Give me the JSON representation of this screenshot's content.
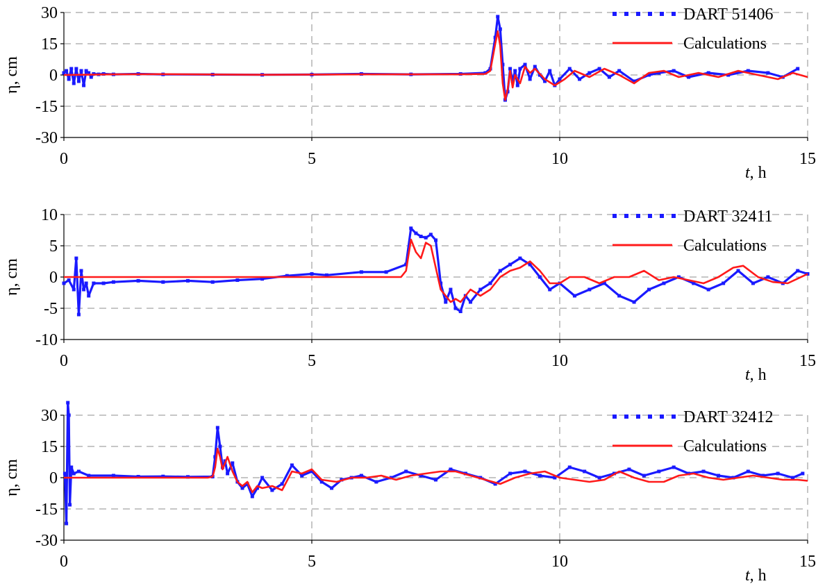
{
  "colors": {
    "observed": "#1a1aff",
    "calculated": "#ff1a1a",
    "grid": "#8c8c8c",
    "axis": "#000000"
  },
  "chart_data": [
    {
      "type": "line",
      "title": "",
      "xlabel_var": "t",
      "xlabel_unit": ", h",
      "ylabel": "η, cm",
      "xlim": [
        0,
        15
      ],
      "ylim": [
        -30,
        30
      ],
      "xticks": [
        0,
        5,
        10,
        15
      ],
      "yticks": [
        30,
        15,
        0,
        -15,
        -30
      ],
      "grid": "dashed",
      "legend_position": "top-right",
      "series": [
        {
          "name": "DART 51406",
          "style": "dots",
          "x": [
            0.0,
            0.05,
            0.1,
            0.15,
            0.2,
            0.25,
            0.3,
            0.35,
            0.4,
            0.45,
            0.5,
            0.55,
            0.6,
            0.7,
            0.8,
            1.0,
            1.5,
            2.0,
            3.0,
            4.0,
            5.0,
            6.0,
            7.0,
            8.0,
            8.5,
            8.6,
            8.7,
            8.75,
            8.8,
            8.85,
            8.9,
            8.95,
            9.0,
            9.05,
            9.1,
            9.15,
            9.2,
            9.3,
            9.4,
            9.5,
            9.6,
            9.7,
            9.8,
            9.9,
            10.0,
            10.2,
            10.4,
            10.6,
            10.8,
            11.0,
            11.2,
            11.5,
            11.8,
            12.0,
            12.3,
            12.6,
            13.0,
            13.4,
            13.8,
            14.2,
            14.5,
            14.8
          ],
          "y": [
            1,
            2,
            -2,
            3,
            -4,
            3,
            -3,
            2,
            -5,
            2,
            1,
            -1,
            0.5,
            0.3,
            0.5,
            0.3,
            0.5,
            0.3,
            0.2,
            0.1,
            0.2,
            0.5,
            0.3,
            0.5,
            1,
            3,
            18,
            28,
            22,
            5,
            -12,
            -8,
            3,
            -3,
            2,
            -5,
            3,
            5,
            -2,
            4,
            0,
            -3,
            2,
            -5,
            -2,
            3,
            -2,
            1,
            3,
            -1,
            2,
            -3,
            0,
            1,
            2,
            -1,
            1,
            0,
            2,
            1,
            -1,
            3
          ]
        },
        {
          "name": "Calculations",
          "style": "line",
          "x": [
            0.0,
            1.0,
            2.0,
            4.0,
            6.0,
            8.0,
            8.5,
            8.6,
            8.7,
            8.75,
            8.8,
            8.85,
            8.9,
            8.95,
            9.0,
            9.05,
            9.1,
            9.2,
            9.3,
            9.4,
            9.5,
            9.7,
            9.9,
            10.1,
            10.3,
            10.6,
            10.9,
            11.2,
            11.5,
            11.8,
            12.1,
            12.4,
            12.8,
            13.2,
            13.6,
            14.0,
            14.4,
            14.7,
            15.0
          ],
          "y": [
            0,
            0.3,
            0.4,
            0.1,
            0.3,
            0.3,
            0.5,
            2,
            15,
            21,
            14,
            -4,
            -12,
            -7,
            2,
            -6,
            0,
            -4,
            4,
            1,
            3,
            -2,
            -5,
            -2,
            2,
            -1,
            3,
            0,
            -4,
            1,
            2,
            -1,
            1,
            -1,
            2,
            0,
            -2,
            1,
            -1
          ]
        }
      ]
    },
    {
      "type": "line",
      "title": "",
      "xlabel_var": "t",
      "xlabel_unit": ", h",
      "ylabel": "η, cm",
      "xlim": [
        0,
        15
      ],
      "ylim": [
        -10,
        10
      ],
      "xticks": [
        0,
        5,
        10,
        15
      ],
      "yticks": [
        10,
        5,
        0,
        -5,
        -10
      ],
      "grid": "dashed",
      "legend_position": "top-right",
      "series": [
        {
          "name": "DART 32411",
          "style": "dots",
          "x": [
            0.0,
            0.1,
            0.2,
            0.25,
            0.3,
            0.35,
            0.4,
            0.45,
            0.5,
            0.6,
            0.8,
            1.0,
            1.5,
            2.0,
            2.5,
            3.0,
            3.5,
            4.0,
            4.5,
            5.0,
            5.3,
            6.0,
            6.5,
            6.9,
            7.0,
            7.1,
            7.2,
            7.3,
            7.4,
            7.5,
            7.6,
            7.7,
            7.8,
            7.9,
            8.0,
            8.1,
            8.2,
            8.4,
            8.6,
            8.8,
            9.0,
            9.2,
            9.4,
            9.6,
            9.8,
            10.0,
            10.3,
            10.6,
            10.9,
            11.2,
            11.5,
            11.8,
            12.1,
            12.4,
            12.7,
            13.0,
            13.3,
            13.6,
            13.9,
            14.2,
            14.5,
            14.8,
            15.0
          ],
          "y": [
            -1,
            -0.5,
            -2,
            3,
            -6,
            1,
            -2,
            -1,
            -3,
            -1,
            -1,
            -0.8,
            -0.6,
            -0.8,
            -0.6,
            -0.8,
            -0.5,
            -0.3,
            0.2,
            0.5,
            0.3,
            0.8,
            0.8,
            2,
            7.8,
            7,
            6.5,
            6.3,
            6.8,
            5.9,
            -1,
            -4,
            -2,
            -5,
            -5.5,
            -3,
            -4,
            -2,
            -1,
            1,
            2,
            3,
            2,
            0,
            -2,
            -1,
            -3,
            -2,
            -1,
            -3,
            -4,
            -2,
            -1,
            0,
            -1,
            -2,
            -1,
            1,
            -1,
            0,
            -1,
            1,
            0.5
          ]
        },
        {
          "name": "Calculations",
          "style": "line",
          "x": [
            0.0,
            1.0,
            2.0,
            3.0,
            4.0,
            5.0,
            6.0,
            6.8,
            6.9,
            7.0,
            7.1,
            7.2,
            7.3,
            7.4,
            7.5,
            7.6,
            7.7,
            7.8,
            7.9,
            8.0,
            8.2,
            8.4,
            8.6,
            8.8,
            9.0,
            9.2,
            9.4,
            9.6,
            9.8,
            10.0,
            10.2,
            10.5,
            10.8,
            11.1,
            11.4,
            11.7,
            12.0,
            12.3,
            12.6,
            12.9,
            13.2,
            13.5,
            13.7,
            14.0,
            14.3,
            14.6,
            15.0
          ],
          "y": [
            0,
            0,
            0,
            0,
            0,
            0,
            0,
            0,
            1,
            6,
            4,
            3,
            5.5,
            5,
            1.5,
            -2,
            -3,
            -4,
            -3.5,
            -4,
            -2,
            -3,
            -2,
            0,
            1,
            1.5,
            2.5,
            1,
            -1,
            -1,
            0,
            0,
            -1,
            0,
            0,
            1,
            -0.5,
            0,
            -0.5,
            -1,
            0,
            1.5,
            1.8,
            0,
            -0.8,
            -1,
            0.5
          ]
        }
      ]
    },
    {
      "type": "line",
      "title": "",
      "xlabel_var": "t",
      "xlabel_unit": ", h",
      "ylabel": "η, cm",
      "xlim": [
        0,
        15
      ],
      "ylim": [
        -30,
        30
      ],
      "xticks": [
        0,
        5,
        10,
        15
      ],
      "yticks": [
        30,
        15,
        0,
        -15,
        -30
      ],
      "grid": "dashed",
      "legend_position": "top-right",
      "series": [
        {
          "name": "DART 32412",
          "style": "dots",
          "x": [
            0.02,
            0.05,
            0.08,
            0.1,
            0.12,
            0.15,
            0.2,
            0.3,
            0.5,
            1.0,
            1.5,
            2.0,
            2.5,
            3.0,
            3.05,
            3.1,
            3.15,
            3.2,
            3.25,
            3.3,
            3.4,
            3.5,
            3.6,
            3.7,
            3.8,
            3.9,
            4.0,
            4.2,
            4.4,
            4.6,
            4.8,
            5.0,
            5.2,
            5.4,
            5.6,
            5.8,
            6.0,
            6.3,
            6.6,
            6.9,
            7.2,
            7.5,
            7.8,
            8.1,
            8.4,
            8.7,
            9.0,
            9.3,
            9.6,
            9.9,
            10.2,
            10.5,
            10.8,
            11.1,
            11.4,
            11.7,
            12.0,
            12.3,
            12.6,
            12.9,
            13.2,
            13.5,
            13.8,
            14.1,
            14.4,
            14.7,
            14.9
          ],
          "y": [
            2,
            -22,
            36,
            30,
            -13,
            5,
            2,
            3,
            1,
            1,
            0.5,
            0.6,
            0.4,
            0.5,
            10,
            24,
            15,
            5,
            8,
            2,
            7,
            -2,
            -5,
            -3,
            -9,
            -5,
            0,
            -6,
            -3,
            6,
            1,
            3,
            -2,
            -5,
            -1,
            0,
            1,
            -2,
            0,
            3,
            1,
            -1,
            4,
            2,
            0,
            -3,
            2,
            3,
            1,
            0,
            5,
            3,
            0,
            2,
            4,
            1,
            3,
            5,
            2,
            3,
            1,
            0,
            3,
            1,
            2,
            0,
            2
          ]
        },
        {
          "name": "Calculations",
          "style": "line",
          "x": [
            0.0,
            1.0,
            2.0,
            2.9,
            3.0,
            3.05,
            3.1,
            3.15,
            3.2,
            3.3,
            3.4,
            3.5,
            3.6,
            3.7,
            3.8,
            3.9,
            4.0,
            4.2,
            4.4,
            4.6,
            4.8,
            5.0,
            5.2,
            5.5,
            5.8,
            6.1,
            6.4,
            6.7,
            7.0,
            7.3,
            7.6,
            7.9,
            8.2,
            8.5,
            8.8,
            9.1,
            9.4,
            9.7,
            10.0,
            10.3,
            10.6,
            10.9,
            11.2,
            11.5,
            11.8,
            12.1,
            12.4,
            12.7,
            13.0,
            13.3,
            13.6,
            13.9,
            14.2,
            14.5,
            14.8,
            15.0
          ],
          "y": [
            0,
            0,
            0,
            0,
            0.5,
            5,
            14,
            10,
            4,
            10,
            3,
            -2,
            -4,
            -2,
            -7,
            -4,
            -5,
            -4,
            -6,
            3,
            2,
            4,
            -1,
            -2,
            0,
            0,
            1,
            -1,
            1,
            2,
            3,
            3,
            1,
            -1,
            -3,
            0,
            2,
            3,
            0,
            -1,
            -2,
            -1,
            3,
            0,
            -2,
            -2,
            1,
            2,
            0,
            -1,
            0,
            1,
            0,
            -1,
            -1,
            -1.5
          ]
        }
      ]
    }
  ]
}
